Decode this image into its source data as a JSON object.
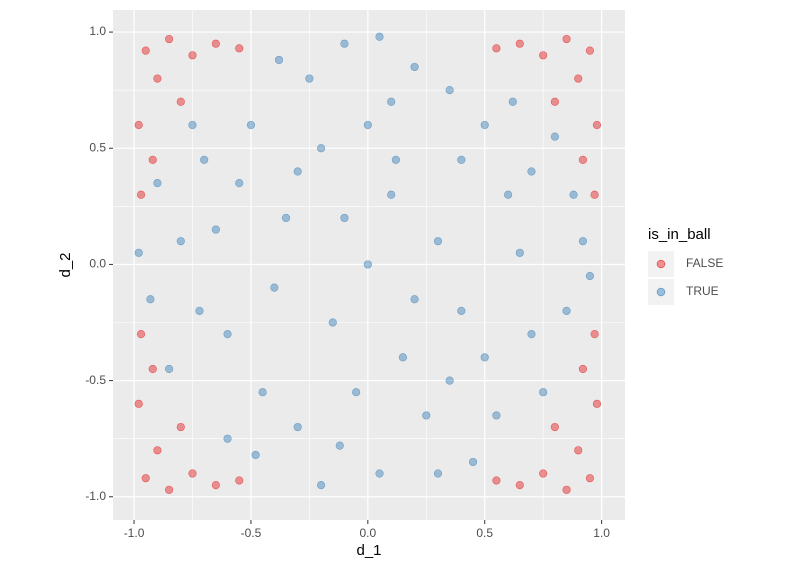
{
  "chart_data": {
    "type": "scatter",
    "xlabel": "d_1",
    "ylabel": "d_2",
    "legend_title": "is_in_ball",
    "xlim": [
      -1.09,
      1.1
    ],
    "ylim": [
      -1.1,
      1.095
    ],
    "xticks": [
      {
        "value": -1,
        "label": "-1.0"
      },
      -0.5,
      {
        "value": 0,
        "label": "0.0"
      },
      0.5,
      {
        "value": 1,
        "label": "1.0"
      }
    ],
    "yticks": [
      {
        "value": -1,
        "label": "-1.0"
      },
      -0.5,
      {
        "value": 0,
        "label": "0.0"
      },
      0.5,
      {
        "value": 1,
        "label": "1.0"
      }
    ],
    "grid": true,
    "legend": "right",
    "series": [
      {
        "name": "FALSE",
        "color": "#E41A1C",
        "x": [
          -0.95,
          -0.85,
          -0.9,
          -0.75,
          -0.98,
          -0.8,
          -0.65,
          -0.92,
          -0.55,
          -0.97,
          0.95,
          0.85,
          0.9,
          0.75,
          0.98,
          0.8,
          0.65,
          0.92,
          0.55,
          0.97,
          -0.95,
          -0.85,
          -0.9,
          -0.75,
          -0.98,
          -0.8,
          -0.65,
          -0.92,
          -0.55,
          -0.97,
          0.95,
          0.85,
          0.9,
          0.75,
          0.98,
          0.8,
          0.65,
          0.92,
          0.55,
          0.97
        ],
        "y": [
          0.92,
          0.97,
          0.8,
          0.9,
          0.6,
          0.7,
          0.95,
          0.45,
          0.93,
          0.3,
          0.92,
          0.97,
          0.8,
          0.9,
          0.6,
          0.7,
          0.95,
          0.45,
          0.93,
          0.3,
          -0.92,
          -0.97,
          -0.8,
          -0.9,
          -0.6,
          -0.7,
          -0.95,
          -0.45,
          -0.93,
          -0.3,
          -0.92,
          -0.97,
          -0.8,
          -0.9,
          -0.6,
          -0.7,
          -0.95,
          -0.45,
          -0.93,
          -0.3
        ]
      },
      {
        "name": "TRUE",
        "color": "#377EB8",
        "x": [
          0,
          0.1,
          -0.2,
          0.4,
          -0.6,
          0.7,
          -0.3,
          0.2,
          -0.8,
          0.85,
          0.5,
          -0.5,
          0.55,
          -0.45,
          0.05,
          -0.1,
          0.92,
          -0.93,
          0.3,
          -0.35,
          0.15,
          -0.15,
          0.65,
          -0.7,
          0.35,
          -0.25,
          0.45,
          -0.6,
          0.75,
          -0.85,
          0,
          0.25,
          -0.4,
          0.6,
          -0.05,
          0.8,
          -0.75,
          0.1,
          -0.55,
          0.4,
          -0.2,
          0.3,
          0.7,
          -0.9,
          0.95,
          -0.65,
          0.2,
          -0.3,
          0.5,
          -0.1,
          0.62,
          -0.38,
          0.12,
          -0.72,
          0.35,
          -0.48,
          0.88,
          -0.12,
          0.05,
          -0.98
        ],
        "y": [
          0,
          0.3,
          0.5,
          -0.2,
          -0.3,
          0.4,
          -0.7,
          0.85,
          0.1,
          -0.2,
          0.6,
          0.6,
          -0.65,
          -0.55,
          -0.9,
          0.95,
          0.1,
          -0.15,
          0.1,
          0.2,
          -0.4,
          -0.25,
          0.05,
          0.45,
          0.75,
          0.8,
          -0.85,
          -0.75,
          -0.55,
          -0.45,
          0.6,
          -0.65,
          -0.1,
          0.3,
          -0.55,
          0.55,
          0.6,
          0.7,
          0.35,
          0.45,
          -0.95,
          -0.9,
          -0.3,
          0.35,
          -0.05,
          0.15,
          -0.15,
          0.4,
          -0.4,
          0.2,
          0.7,
          0.88,
          0.45,
          -0.2,
          -0.5,
          -0.82,
          0.3,
          -0.78,
          0.98,
          0.05
        ]
      }
    ]
  }
}
